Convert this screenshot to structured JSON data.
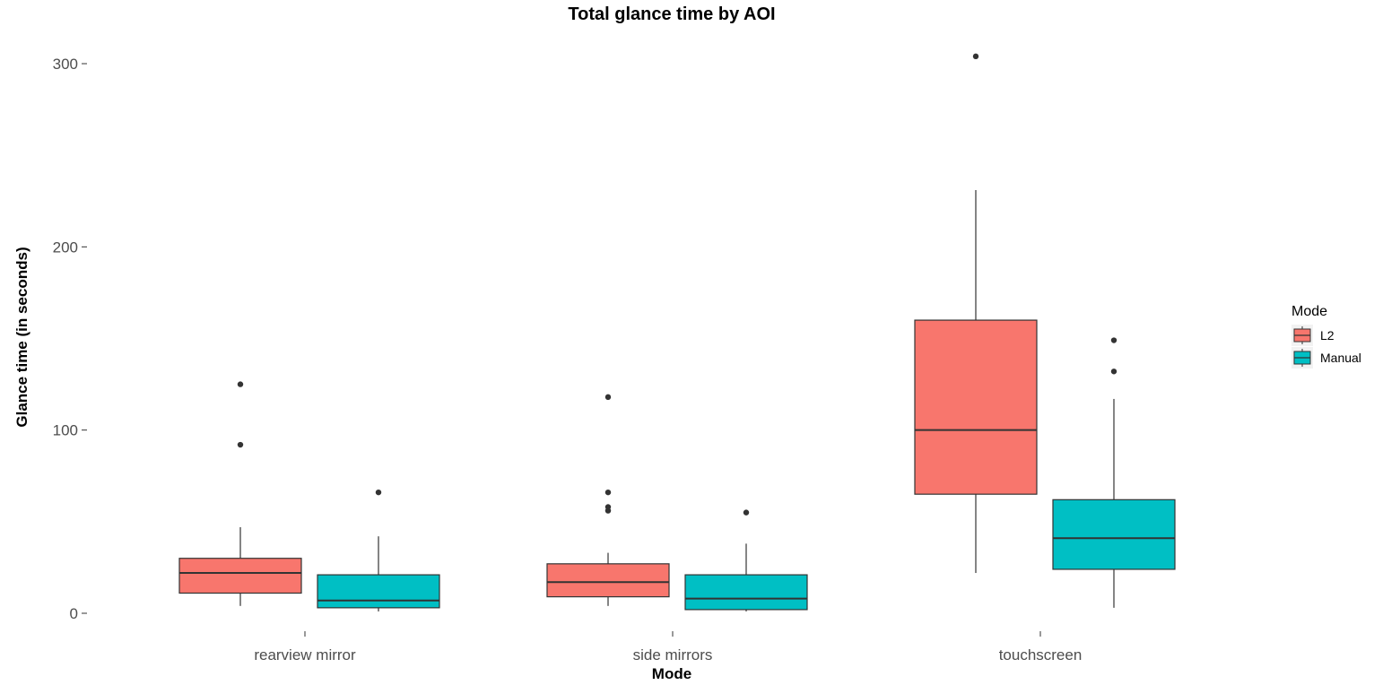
{
  "chart_data": {
    "type": "boxplot",
    "title": "Total glance time by AOI",
    "xlabel": "Mode",
    "ylabel": "Glance time (in seconds)",
    "categories": [
      "rearview mirror",
      "side mirrors",
      "touchscreen"
    ],
    "ylim": [
      -10,
      317
    ],
    "yticks": [
      0,
      100,
      200,
      300
    ],
    "grid": false,
    "legend": {
      "title": "Mode",
      "placement": "right"
    },
    "series": [
      {
        "name": "L2",
        "color": "#F8766D",
        "boxes": [
          {
            "category": "rearview mirror",
            "whisker_low": 4,
            "q1": 11,
            "median": 22,
            "q3": 30,
            "whisker_high": 47,
            "outliers": [
              92,
              125
            ]
          },
          {
            "category": "side mirrors",
            "whisker_low": 4,
            "q1": 9,
            "median": 17,
            "q3": 27,
            "whisker_high": 33,
            "outliers": [
              56,
              58,
              66,
              118
            ]
          },
          {
            "category": "touchscreen",
            "whisker_low": 22,
            "q1": 65,
            "median": 100,
            "q3": 160,
            "whisker_high": 231,
            "outliers": [
              304
            ]
          }
        ]
      },
      {
        "name": "Manual",
        "color": "#00BFC4",
        "boxes": [
          {
            "category": "rearview mirror",
            "whisker_low": 1,
            "q1": 3,
            "median": 7,
            "q3": 21,
            "whisker_high": 42,
            "outliers": [
              66
            ]
          },
          {
            "category": "side mirrors",
            "whisker_low": 1,
            "q1": 2,
            "median": 8,
            "q3": 21,
            "whisker_high": 38,
            "outliers": [
              55
            ]
          },
          {
            "category": "touchscreen",
            "whisker_low": 3,
            "q1": 24,
            "median": 41,
            "q3": 62,
            "whisker_high": 117,
            "outliers": [
              132,
              149
            ]
          }
        ]
      }
    ]
  }
}
